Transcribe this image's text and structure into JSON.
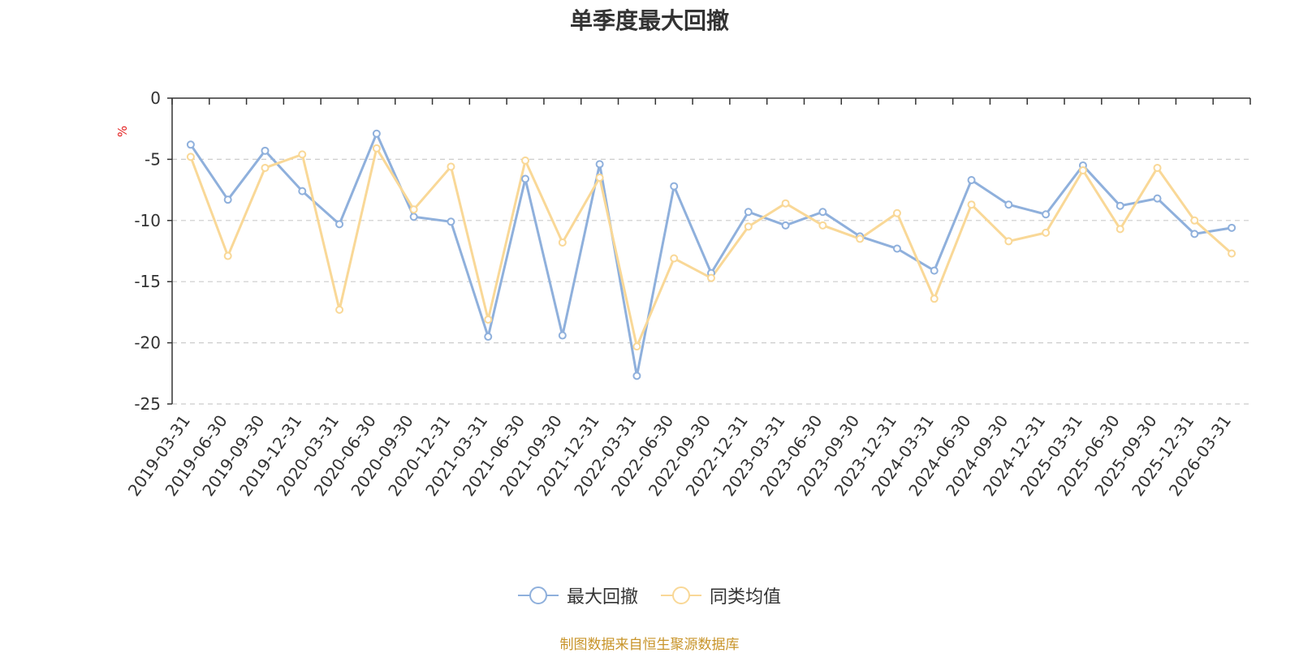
{
  "chart_data": {
    "type": "line",
    "title": "单季度最大回撤",
    "ylabel": "%",
    "xlabel": "",
    "ylim": [
      -25,
      0
    ],
    "yticks": [
      0,
      -5,
      -10,
      -15,
      -20,
      -25
    ],
    "grid": true,
    "legend_position": "bottom",
    "categories": [
      "2019-03-31",
      "2019-06-30",
      "2019-09-30",
      "2019-12-31",
      "2020-03-31",
      "2020-06-30",
      "2020-09-30",
      "2020-12-31",
      "2021-03-31",
      "2021-06-30",
      "2021-09-30",
      "2021-12-31",
      "2022-03-31",
      "2022-06-30",
      "2022-09-30",
      "2022-12-31",
      "2023-03-31",
      "2023-06-30",
      "2023-09-30",
      "2023-12-31",
      "2024-03-31",
      "2024-06-30",
      "2024-09-30",
      "2024-12-31",
      "2025-03-31",
      "2025-06-30",
      "2025-09-30",
      "2025-12-31",
      "2026-03-31"
    ],
    "series": [
      {
        "name": "最大回撤",
        "color": "#8fb0dc",
        "values": [
          -3.8,
          -8.3,
          -4.3,
          -7.6,
          -10.3,
          -2.9,
          -9.7,
          -10.1,
          -19.5,
          -6.6,
          -19.4,
          -5.4,
          -22.7,
          -7.2,
          -14.3,
          -9.3,
          -10.4,
          -9.3,
          -11.3,
          -12.3,
          -14.1,
          -6.7,
          -8.7,
          -9.5,
          -5.5,
          -8.8,
          -8.2,
          -11.1,
          -10.6
        ]
      },
      {
        "name": "同类均值",
        "color": "#f9d897",
        "values": [
          -4.8,
          -12.9,
          -5.7,
          -4.6,
          -17.3,
          -4.1,
          -9.1,
          -5.6,
          -18.1,
          -5.1,
          -11.8,
          -6.5,
          -20.3,
          -13.1,
          -14.7,
          -10.5,
          -8.6,
          -10.4,
          -11.5,
          -9.4,
          -16.4,
          -8.7,
          -11.7,
          -11.0,
          -5.9,
          -10.7,
          -5.7,
          -10.0,
          -12.7
        ]
      }
    ]
  },
  "source_note": "制图数据来自恒生聚源数据库",
  "colors": {
    "axis": "#333333",
    "grid": "#cccccc",
    "ylabel": "#e31c1c",
    "source": "#c8942a"
  }
}
